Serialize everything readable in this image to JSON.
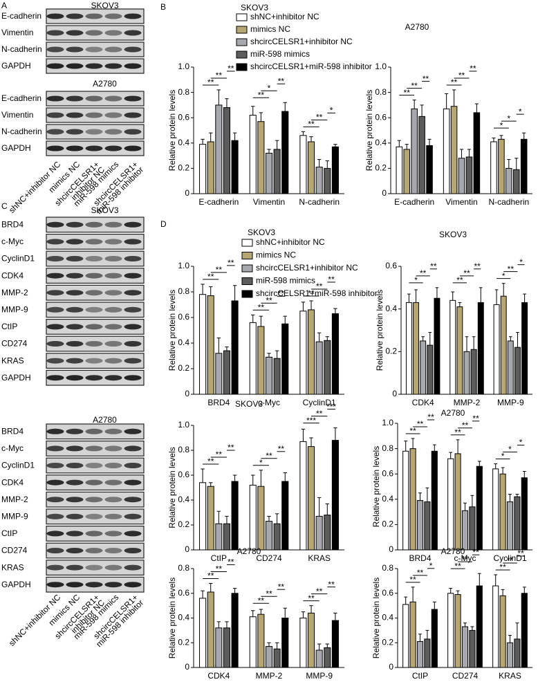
{
  "blots": [
    {
      "letter": "A",
      "blocks": [
        {
          "title": "SKOV3",
          "rows": [
            "E-cadherin",
            "Vimentin",
            "N-cadherin",
            "GAPDH"
          ]
        },
        {
          "title": "A2780",
          "rows": [
            "E-cadherin",
            "Vimentin",
            "N-cadherin",
            "GAPDH"
          ]
        }
      ],
      "lanes": [
        [
          "shNC+inhibitor NC"
        ],
        [
          "mimics NC"
        ],
        [
          "shcircCELSR1+",
          "inhibitor NC"
        ],
        [
          "miR-598 mimics"
        ],
        [
          "shcircCELSR1+",
          "miR-598 inhibitor"
        ]
      ]
    },
    {
      "letter": "C",
      "blocks": [
        {
          "title": "SKOV3",
          "rows": [
            "BRD4",
            "c-Myc",
            "CyclinD1",
            "CDK4",
            "MMP-2",
            "MMP-9",
            "CtIP",
            "CD274",
            "KRAS",
            "GAPDH"
          ]
        },
        {
          "title": "A2780",
          "rows": [
            "BRD4",
            "c-Myc",
            "CyclinD1",
            "CDK4",
            "MMP-2",
            "MMP-9",
            "CtIP",
            "CD274",
            "KRAS",
            "GAPDH"
          ]
        }
      ],
      "lanes": [
        [
          "shNC+inhibitor NC"
        ],
        [
          "mimics NC"
        ],
        [
          "shcircCELSR1+",
          "inhibitor NC"
        ],
        [
          "miR-598 mimics"
        ],
        [
          "shcircCELSR1+",
          "miR-598 inhibitor"
        ]
      ]
    }
  ],
  "chart_panels": [
    {
      "letter": "B"
    },
    {
      "letter": "D"
    }
  ],
  "chart_data": [
    {
      "type": "bar",
      "title": "SKOV3",
      "y_label": "Relative protein levels",
      "categories": [
        "E-cadherin",
        "Vimentin",
        "N-cadherin"
      ],
      "ylim": [
        0,
        1
      ],
      "yticks": [
        0,
        0.2,
        0.4,
        0.6,
        0.8,
        {
          "value": 1,
          "label": "1.0"
        }
      ],
      "series": [
        {
          "name": "shNC+inhibitor NC",
          "color": "#ffffff",
          "values": [
            0.39,
            0.62,
            0.46
          ],
          "errors": [
            0.04,
            0.07,
            0.03
          ]
        },
        {
          "name": "mimics NC",
          "color": "#b5a672",
          "values": [
            0.41,
            0.57,
            0.41
          ],
          "errors": [
            0.07,
            0.07,
            0.04
          ]
        },
        {
          "name": "shcircCELSR1+inhibitor NC",
          "color": "#a6a8ad",
          "values": [
            0.7,
            0.32,
            0.21
          ],
          "errors": [
            0.12,
            0.03,
            0.06
          ]
        },
        {
          "name": "miR-598 mimics",
          "color": "#5c5c5c",
          "values": [
            0.68,
            0.35,
            0.2
          ],
          "errors": [
            0.07,
            0.07,
            0.06
          ]
        },
        {
          "name": "shcircCELSR1+miR-598 inhibitor",
          "color": "#000000",
          "values": [
            0.42,
            0.65,
            0.37
          ],
          "errors": [
            0.06,
            0.07,
            0.02
          ]
        }
      ],
      "significance": [
        [
          "**",
          "**",
          "**"
        ],
        [
          "**",
          "*",
          "**"
        ],
        [
          "**",
          "**",
          "*"
        ]
      ]
    },
    {
      "type": "bar",
      "title": "A2780",
      "y_label": "Relative protein levels",
      "categories": [
        "E-cadherin",
        "Vimentin",
        "N-cadherin"
      ],
      "ylim": [
        0,
        1
      ],
      "yticks": [
        0,
        0.2,
        0.4,
        0.6,
        0.8,
        {
          "value": 1,
          "label": "1.0"
        }
      ],
      "series": [
        {
          "color": "#ffffff",
          "values": [
            0.37,
            0.67,
            0.41
          ],
          "errors": [
            0.05,
            0.12,
            0.03
          ]
        },
        {
          "color": "#b5a672",
          "values": [
            0.35,
            0.69,
            0.43
          ],
          "errors": [
            0.04,
            0.13,
            0.03
          ]
        },
        {
          "color": "#a6a8ad",
          "values": [
            0.67,
            0.28,
            0.2
          ],
          "errors": [
            0.07,
            0.07,
            0.07
          ]
        },
        {
          "color": "#5c5c5c",
          "values": [
            0.61,
            0.29,
            0.19
          ],
          "errors": [
            0.09,
            0.06,
            0.09
          ]
        },
        {
          "color": "#000000",
          "values": [
            0.38,
            0.64,
            0.43
          ],
          "errors": [
            0.05,
            0.07,
            0.05
          ]
        }
      ],
      "significance": [
        [
          "**",
          "**",
          "**"
        ],
        [
          "**",
          "**",
          "**"
        ],
        [
          "*",
          "*",
          "*"
        ]
      ]
    },
    {
      "type": "bar",
      "title": "SKOV3",
      "y_label": "Relative protein levels",
      "categories": [
        "BRD4",
        "c-Myc",
        "CyclinD1"
      ],
      "ylim": [
        0,
        1
      ],
      "yticks": [
        0,
        0.2,
        0.4,
        0.6,
        0.8,
        {
          "value": 1,
          "label": "1.0"
        }
      ],
      "series": [
        {
          "name": "shNC+inhibitor NC",
          "color": "#ffffff",
          "values": [
            0.78,
            0.56,
            0.65
          ],
          "errors": [
            0.08,
            0.06,
            0.07
          ]
        },
        {
          "name": "mimics NC",
          "color": "#b5a672",
          "values": [
            0.77,
            0.53,
            0.66
          ],
          "errors": [
            0.07,
            0.08,
            0.07
          ]
        },
        {
          "name": "shcircCELSR1+inhibitor NC",
          "color": "#a6a8ad",
          "values": [
            0.32,
            0.29,
            0.41
          ],
          "errors": [
            0.12,
            0.03,
            0.07
          ]
        },
        {
          "name": "miR-598 mimics",
          "color": "#5c5c5c",
          "values": [
            0.34,
            0.28,
            0.42
          ],
          "errors": [
            0.03,
            0.06,
            0.03
          ]
        },
        {
          "name": "shcircCELSR1+miR-598 inhibitor",
          "color": "#000000",
          "values": [
            0.73,
            0.55,
            0.63
          ],
          "errors": [
            0.12,
            0.06,
            0.04
          ]
        }
      ],
      "significance": [
        [
          "**",
          "**",
          "**"
        ],
        [
          "**",
          "**",
          "**"
        ],
        [
          "**",
          "**",
          "**"
        ]
      ]
    },
    {
      "type": "bar",
      "title": "SKOV3",
      "y_label": "Relative protein levels",
      "categories": [
        "CDK4",
        "MMP-2",
        "MMP-9"
      ],
      "ylim": [
        0,
        0.6
      ],
      "yticks": [
        0,
        0.2,
        0.4,
        0.6
      ],
      "series": [
        {
          "color": "#ffffff",
          "values": [
            0.43,
            0.44,
            0.42
          ],
          "errors": [
            0.04,
            0.04,
            0.07
          ]
        },
        {
          "color": "#b5a672",
          "values": [
            0.43,
            0.41,
            0.46
          ],
          "errors": [
            0.06,
            0.02,
            0.06
          ]
        },
        {
          "color": "#a6a8ad",
          "values": [
            0.25,
            0.2,
            0.25
          ],
          "errors": [
            0.02,
            0.07,
            0.02
          ]
        },
        {
          "color": "#5c5c5c",
          "values": [
            0.23,
            0.21,
            0.22
          ],
          "errors": [
            0.06,
            0.06,
            0.07
          ]
        },
        {
          "color": "#000000",
          "values": [
            0.45,
            0.43,
            0.43
          ],
          "errors": [
            0.05,
            0.07,
            0.04
          ]
        }
      ],
      "significance": [
        [
          "*",
          "**",
          "**"
        ],
        [
          "**",
          "**",
          "**"
        ],
        [
          "*",
          "**",
          "*"
        ]
      ]
    },
    {
      "type": "bar",
      "title": "SKOV3",
      "y_label": "Relative protein levels",
      "categories": [
        "CtIP",
        "CD274",
        "KRAS"
      ],
      "ylim": [
        0,
        1
      ],
      "yticks": [
        0,
        0.2,
        0.4,
        0.6,
        0.8,
        {
          "value": 1,
          "label": "1.0"
        }
      ],
      "series": [
        {
          "color": "#ffffff",
          "values": [
            0.54,
            0.52,
            0.87
          ],
          "errors": [
            0.11,
            0.08,
            0.1
          ]
        },
        {
          "color": "#b5a672",
          "values": [
            0.51,
            0.51,
            0.83
          ],
          "errors": [
            0.03,
            0.13,
            0.07
          ]
        },
        {
          "color": "#a6a8ad",
          "values": [
            0.21,
            0.23,
            0.27
          ],
          "errors": [
            0.1,
            0.04,
            0.15
          ]
        },
        {
          "color": "#5c5c5c",
          "values": [
            0.21,
            0.21,
            0.28
          ],
          "errors": [
            0.06,
            0.08,
            0.09
          ]
        },
        {
          "color": "#000000",
          "values": [
            0.55,
            0.55,
            0.88
          ],
          "errors": [
            0.05,
            0.07,
            0.1
          ]
        }
      ],
      "significance": [
        [
          "**",
          "**",
          "**"
        ],
        [
          "*",
          "**",
          "**"
        ],
        [
          "***",
          "**",
          "***"
        ]
      ]
    },
    {
      "type": "bar",
      "title": "A2780",
      "y_label": "Relative protein levels",
      "categories": [
        "BRD4",
        "c-Myc",
        "CyclinD1"
      ],
      "ylim": [
        0,
        1
      ],
      "yticks": [
        0,
        0.2,
        0.4,
        0.6,
        0.8,
        {
          "value": 1,
          "label": "1.0"
        }
      ],
      "series": [
        {
          "color": "#ffffff",
          "values": [
            0.78,
            0.72,
            0.64
          ],
          "errors": [
            0.08,
            0.05,
            0.04
          ]
        },
        {
          "color": "#b5a672",
          "values": [
            0.8,
            0.76,
            0.6
          ],
          "errors": [
            0.08,
            0.11,
            0.05
          ]
        },
        {
          "color": "#a6a8ad",
          "values": [
            0.39,
            0.31,
            0.38
          ],
          "errors": [
            0.06,
            0.06,
            0.06
          ]
        },
        {
          "color": "#5c5c5c",
          "values": [
            0.38,
            0.34,
            0.42
          ],
          "errors": [
            0.11,
            0.09,
            0.02
          ]
        },
        {
          "color": "#000000",
          "values": [
            0.78,
            0.66,
            0.57
          ],
          "errors": [
            0.05,
            0.04,
            0.05
          ]
        }
      ],
      "significance": [
        [
          "**",
          "**",
          "**"
        ],
        [
          "**",
          "**",
          "**"
        ],
        [
          "*",
          "*",
          "*"
        ]
      ]
    },
    {
      "type": "bar",
      "title": "A2780",
      "y_label": "Relative protein levels",
      "categories": [
        "CDK4",
        "MMP-2",
        "MMP-9"
      ],
      "ylim": [
        0,
        0.8
      ],
      "yticks": [
        0,
        0.2,
        0.4,
        0.6,
        0.8
      ],
      "series": [
        {
          "color": "#ffffff",
          "values": [
            0.56,
            0.41,
            0.4
          ],
          "errors": [
            0.06,
            0.05,
            0.05
          ]
        },
        {
          "color": "#b5a672",
          "values": [
            0.61,
            0.43,
            0.44
          ],
          "errors": [
            0.07,
            0.04,
            0.06
          ]
        },
        {
          "color": "#a6a8ad",
          "values": [
            0.32,
            0.17,
            0.14
          ],
          "errors": [
            0.05,
            0.03,
            0.05
          ]
        },
        {
          "color": "#5c5c5c",
          "values": [
            0.32,
            0.15,
            0.16
          ],
          "errors": [
            0.05,
            0.05,
            0.03
          ]
        },
        {
          "color": "#000000",
          "values": [
            0.6,
            0.4,
            0.38
          ],
          "errors": [
            0.04,
            0.08,
            0.06
          ]
        }
      ],
      "significance": [
        [
          "**",
          "**",
          "**"
        ],
        [
          "**",
          "**",
          "**"
        ],
        [
          "**",
          "**",
          "**"
        ]
      ]
    },
    {
      "type": "bar",
      "title": "A2780",
      "y_label": "Relative protein levels",
      "categories": [
        "CtIP",
        "CD274",
        "KRAS"
      ],
      "ylim": [
        0,
        0.8
      ],
      "yticks": [
        0,
        0.2,
        0.4,
        0.6,
        0.8
      ],
      "series": [
        {
          "color": "#ffffff",
          "values": [
            0.51,
            0.6,
            0.66
          ],
          "errors": [
            0.06,
            0.04,
            0.09
          ]
        },
        {
          "color": "#b5a672",
          "values": [
            0.53,
            0.59,
            0.58
          ],
          "errors": [
            0.12,
            0.03,
            0.05
          ]
        },
        {
          "color": "#a6a8ad",
          "values": [
            0.21,
            0.33,
            0.2
          ],
          "errors": [
            0.06,
            0.03,
            0.06
          ]
        },
        {
          "color": "#5c5c5c",
          "values": [
            0.23,
            0.3,
            0.23
          ],
          "errors": [
            0.07,
            0.03,
            0.13
          ]
        },
        {
          "color": "#000000",
          "values": [
            0.47,
            0.66,
            0.6
          ],
          "errors": [
            0.06,
            0.1,
            0.05
          ]
        }
      ],
      "significance": [
        [
          "**",
          "**",
          "*"
        ],
        [
          "**",
          "**",
          "**"
        ],
        [
          "**",
          "**",
          "**"
        ]
      ]
    }
  ]
}
